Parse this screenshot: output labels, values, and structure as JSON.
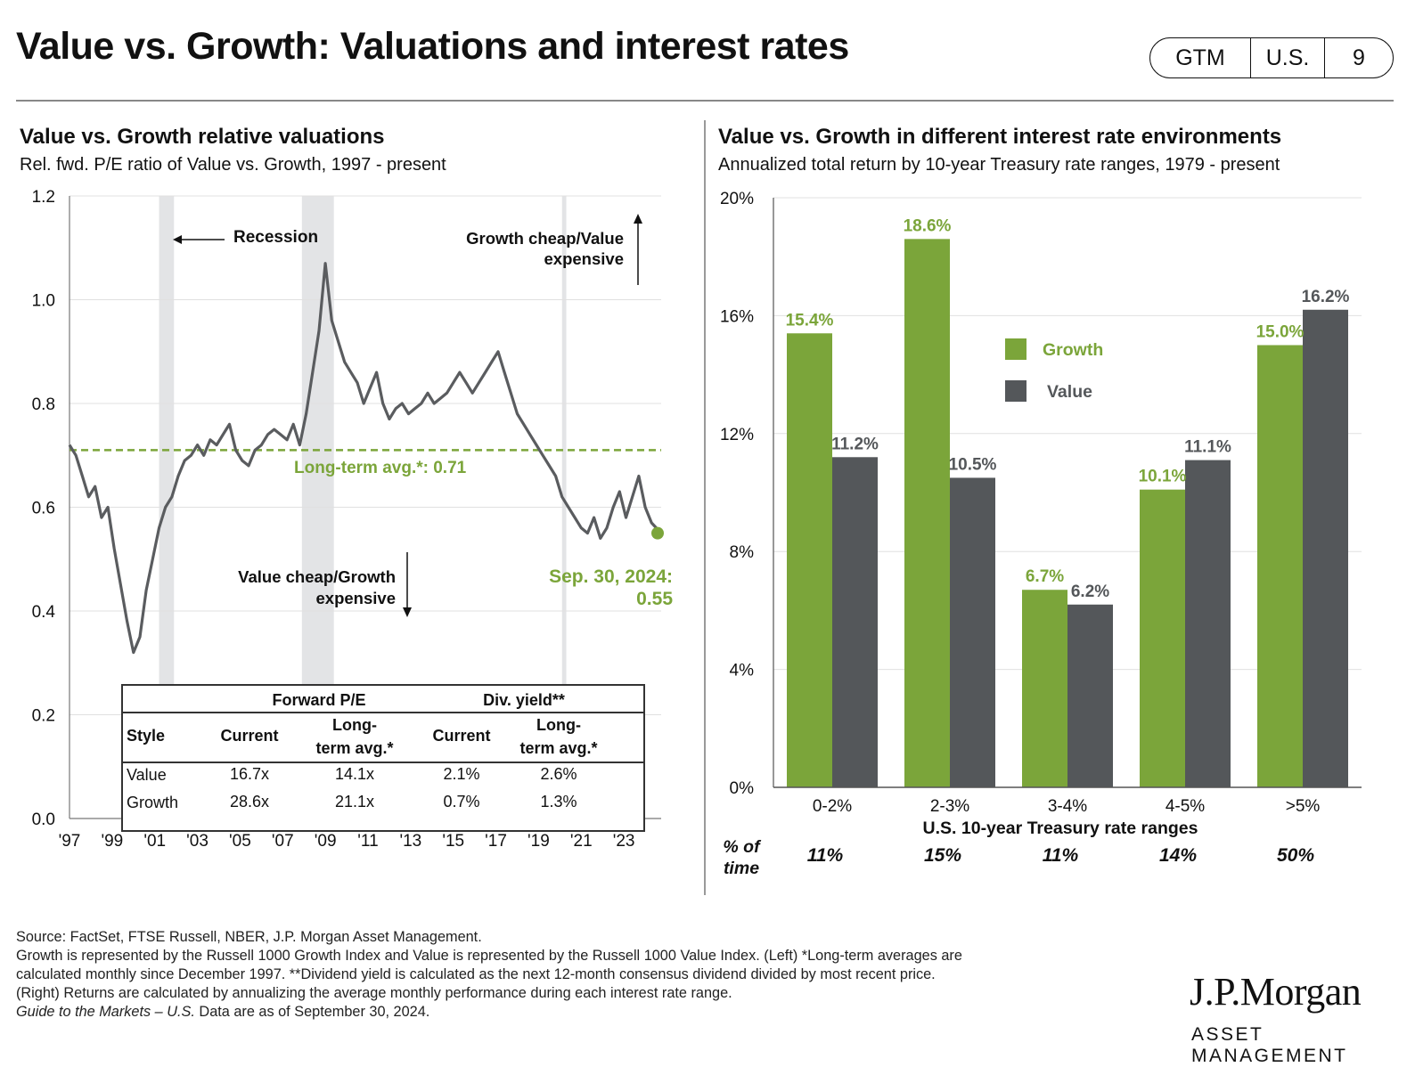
{
  "header": {
    "title": "Value vs. Growth: Valuations and interest rates",
    "pill": [
      "GTM",
      "U.S.",
      "9"
    ]
  },
  "left_panel": {
    "title": "Value vs. Growth relative valuations",
    "subtitle": "Rel. fwd. P/E ratio of Value vs. Growth, 1997 - present",
    "recession_label": "Recession",
    "growth_cheap_label": [
      "Growth cheap/Value",
      "expensive"
    ],
    "value_cheap_label": [
      "Value cheap/Growth",
      "expensive"
    ],
    "avg_label": "Long-term avg.*:  0.71",
    "latest_label": [
      "Sep. 30, 2024:",
      "0.55"
    ]
  },
  "valuation_table": {
    "group_headers": [
      "Forward P/E",
      "Div. yield**"
    ],
    "col_headers": [
      "Style",
      "Current",
      "Long-",
      "term avg.*",
      "Current",
      "Long-",
      "term avg.*"
    ],
    "rows": [
      [
        "Value",
        "16.7x",
        "14.1x",
        "2.1%",
        "2.6%"
      ],
      [
        "Growth",
        "28.6x",
        "21.1x",
        "0.7%",
        "1.3%"
      ]
    ]
  },
  "right_panel": {
    "title": "Value vs. Growth in different interest rate environments",
    "subtitle": "Annualized total return by 10-year Treasury rate ranges, 1979 - present",
    "pct_time_label": [
      "% of",
      "time"
    ],
    "pct_time_values": [
      "11%",
      "15%",
      "11%",
      "14%",
      "50%"
    ]
  },
  "footnotes": [
    "Source: FactSet, FTSE Russell, NBER, J.P. Morgan Asset Management.",
    "Growth is represented by the Russell 1000 Growth Index and Value is represented by the Russell 1000 Value Index. (Left) *Long-term averages are",
    "calculated monthly since December 1997. **Dividend yield is calculated as the next 12-month consensus dividend divided by most recent price.",
    "(Right) Returns are calculated by annualizing the average monthly performance during each interest rate range.",
    "Guide to the Markets – U.S.",
    " Data are as of September 30, 2024."
  ],
  "logo": {
    "name": "J.P.Morgan",
    "sub": "ASSET MANAGEMENT"
  },
  "colors": {
    "growth": "#7ba53a",
    "value": "#54575a",
    "recession": "#e3e4e6",
    "line": "#5a5c5f",
    "avg": "#7ba53a"
  },
  "chart_data": [
    {
      "type": "line",
      "title": "Value vs. Growth relative valuations",
      "ylim": [
        0.0,
        1.2
      ],
      "yticks": [
        0.0,
        0.2,
        0.4,
        0.6,
        0.8,
        1.0,
        1.2
      ],
      "ytick_labels": [
        "0.0",
        "0.2",
        "0.4",
        "0.6",
        "0.8",
        "1.0",
        "1.2"
      ],
      "xlim": [
        1997.0,
        2024.75
      ],
      "xticks": [
        1997,
        1999,
        2001,
        2003,
        2005,
        2007,
        2009,
        2011,
        2013,
        2015,
        2017,
        2019,
        2021,
        2023
      ],
      "xtick_labels": [
        "'97",
        "'99",
        "'01",
        "'03",
        "'05",
        "'07",
        "'09",
        "'11",
        "'13",
        "'15",
        "'17",
        "'19",
        "'21",
        "'23"
      ],
      "recessions": [
        [
          2001.2,
          2001.9
        ],
        [
          2007.9,
          2009.4
        ],
        [
          2020.1,
          2020.3
        ]
      ],
      "long_term_avg": 0.71,
      "latest": {
        "x": 2024.75,
        "y": 0.55
      },
      "series": [
        {
          "x": [
            1997.0,
            1997.3,
            1997.6,
            1997.9,
            1998.2,
            1998.5,
            1998.8,
            1999.1,
            1999.4,
            1999.7,
            2000.0,
            2000.3,
            2000.6,
            2000.9,
            2001.2,
            2001.5,
            2001.8,
            2002.1,
            2002.4,
            2002.7,
            2003.0,
            2003.3,
            2003.6,
            2003.9,
            2004.2,
            2004.5,
            2004.8,
            2005.1,
            2005.4,
            2005.7,
            2006.0,
            2006.3,
            2006.6,
            2006.9,
            2007.2,
            2007.5,
            2007.8,
            2008.1,
            2008.4,
            2008.7,
            2009.0,
            2009.3,
            2009.6,
            2009.9,
            2010.2,
            2010.5,
            2010.8,
            2011.1,
            2011.4,
            2011.7,
            2012.0,
            2012.3,
            2012.6,
            2012.9,
            2013.2,
            2013.5,
            2013.8,
            2014.1,
            2014.4,
            2014.7,
            2015.0,
            2015.3,
            2015.6,
            2015.9,
            2016.2,
            2016.5,
            2016.8,
            2017.1,
            2017.4,
            2017.7,
            2018.0,
            2018.3,
            2018.6,
            2018.9,
            2019.2,
            2019.5,
            2019.8,
            2020.1,
            2020.4,
            2020.7,
            2021.0,
            2021.3,
            2021.6,
            2021.9,
            2022.2,
            2022.5,
            2022.8,
            2023.1,
            2023.4,
            2023.7,
            2024.0,
            2024.3,
            2024.75
          ],
          "y": [
            0.72,
            0.7,
            0.66,
            0.62,
            0.64,
            0.58,
            0.6,
            0.52,
            0.45,
            0.38,
            0.32,
            0.35,
            0.44,
            0.5,
            0.56,
            0.6,
            0.62,
            0.66,
            0.69,
            0.7,
            0.72,
            0.7,
            0.73,
            0.72,
            0.74,
            0.76,
            0.71,
            0.69,
            0.68,
            0.71,
            0.72,
            0.74,
            0.75,
            0.74,
            0.73,
            0.76,
            0.72,
            0.78,
            0.86,
            0.94,
            1.07,
            0.96,
            0.92,
            0.88,
            0.86,
            0.84,
            0.8,
            0.83,
            0.86,
            0.8,
            0.77,
            0.79,
            0.8,
            0.78,
            0.79,
            0.8,
            0.82,
            0.8,
            0.81,
            0.82,
            0.84,
            0.86,
            0.84,
            0.82,
            0.84,
            0.86,
            0.88,
            0.9,
            0.86,
            0.82,
            0.78,
            0.76,
            0.74,
            0.72,
            0.7,
            0.68,
            0.66,
            0.62,
            0.6,
            0.58,
            0.56,
            0.55,
            0.58,
            0.54,
            0.56,
            0.6,
            0.63,
            0.58,
            0.62,
            0.66,
            0.6,
            0.57,
            0.55
          ]
        }
      ]
    },
    {
      "type": "bar",
      "title": "Value vs. Growth in different interest rate environments",
      "xlabel": "U.S. 10-year Treasury rate ranges",
      "categories": [
        "0-2%",
        "2-3%",
        "3-4%",
        "4-5%",
        ">5%"
      ],
      "ylim": [
        0,
        20
      ],
      "yticks": [
        0,
        4,
        8,
        12,
        16,
        20
      ],
      "ytick_labels": [
        "0%",
        "4%",
        "8%",
        "12%",
        "16%",
        "20%"
      ],
      "legend_position": "center-right",
      "series": [
        {
          "name": "Growth",
          "values": [
            15.4,
            18.6,
            6.7,
            10.1,
            15.0
          ],
          "labels": [
            "15.4%",
            "18.6%",
            "6.7%",
            "10.1%",
            "15.0%"
          ]
        },
        {
          "name": "Value",
          "values": [
            11.2,
            10.5,
            6.2,
            11.1,
            16.2
          ],
          "labels": [
            "11.2%",
            "10.5%",
            "6.2%",
            "11.1%",
            "16.2%"
          ]
        }
      ]
    }
  ]
}
